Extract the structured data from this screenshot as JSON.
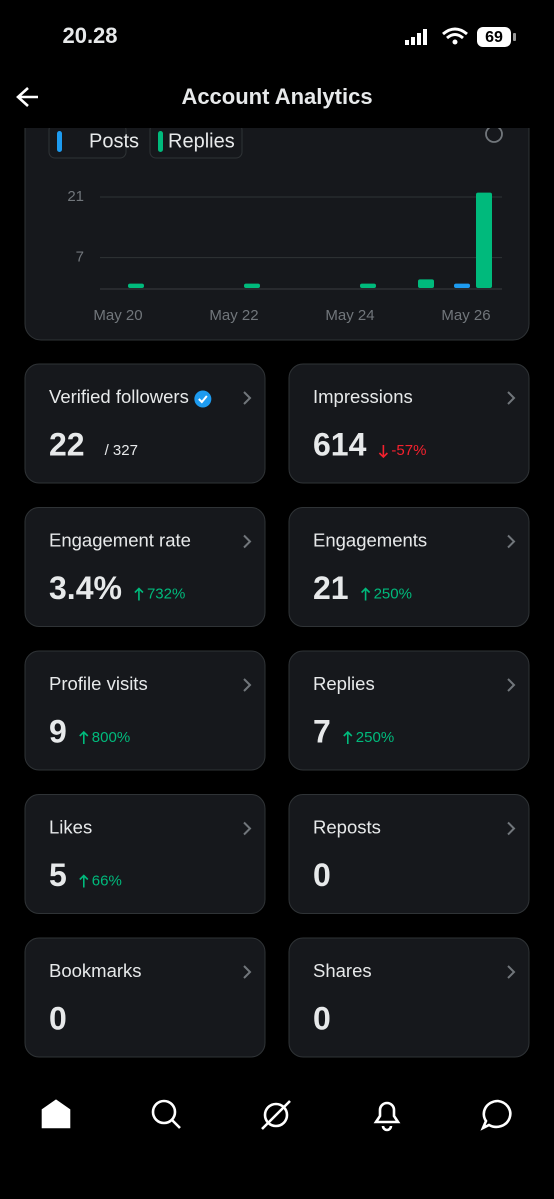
{
  "status_bar": {
    "time": "20.28",
    "battery": "69"
  },
  "header": {
    "title": "Account Analytics"
  },
  "legend": [
    "Posts",
    "Replies"
  ],
  "chart_data": {
    "type": "bar",
    "categories": [
      "May 20",
      null,
      "May 22",
      null,
      "May 24",
      null,
      "May 26"
    ],
    "series": [
      {
        "name": "Posts",
        "color": "#1d9bf0",
        "values": [
          0,
          0,
          0,
          0,
          0,
          0,
          1
        ]
      },
      {
        "name": "Replies",
        "color": "#00ba7c",
        "values": [
          1,
          0,
          1,
          0,
          1,
          2,
          22
        ]
      }
    ],
    "ylim": [
      0,
      24
    ],
    "yticks": [
      7,
      21
    ],
    "grid": true
  },
  "metrics": [
    {
      "label": "Verified followers",
      "value": "22",
      "total": "/ 327",
      "verified": true
    },
    {
      "label": "Impressions",
      "value": "614",
      "change": "-57%",
      "trend": "down"
    },
    {
      "label": "Engagement rate",
      "value": "3.4%",
      "change": "732%",
      "trend": "up"
    },
    {
      "label": "Engagements",
      "value": "21",
      "change": "250%",
      "trend": "up"
    },
    {
      "label": "Profile visits",
      "value": "9",
      "change": "800%",
      "trend": "up"
    },
    {
      "label": "Replies",
      "value": "7",
      "change": "250%",
      "trend": "up"
    },
    {
      "label": "Likes",
      "value": "5",
      "change": "66%",
      "trend": "up"
    },
    {
      "label": "Reposts",
      "value": "0"
    },
    {
      "label": "Bookmarks",
      "value": "0"
    },
    {
      "label": "Shares",
      "value": "0"
    }
  ]
}
